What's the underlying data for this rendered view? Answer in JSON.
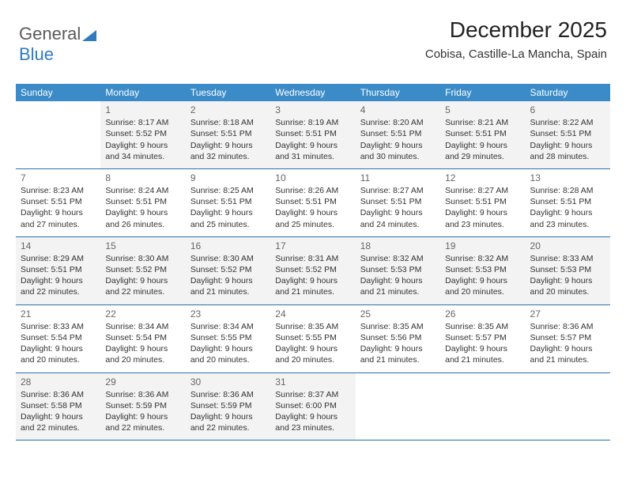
{
  "logo": {
    "text1": "General",
    "text2": "Blue"
  },
  "header": {
    "title": "December 2025",
    "location": "Cobisa, Castille-La Mancha, Spain"
  },
  "colors": {
    "header_bg": "#3b8bc8",
    "header_text": "#ffffff",
    "row_alt": "#f3f3f3",
    "row_border": "#2f6fa8",
    "logo_gray": "#5a5a5a",
    "logo_blue": "#2f7bbf"
  },
  "calendar": {
    "weekdays": [
      "Sunday",
      "Monday",
      "Tuesday",
      "Wednesday",
      "Thursday",
      "Friday",
      "Saturday"
    ],
    "first_day_index": 1,
    "days": [
      {
        "n": 1,
        "sr": "8:17 AM",
        "ss": "5:52 PM",
        "dl": "9 hours and 34 minutes."
      },
      {
        "n": 2,
        "sr": "8:18 AM",
        "ss": "5:51 PM",
        "dl": "9 hours and 32 minutes."
      },
      {
        "n": 3,
        "sr": "8:19 AM",
        "ss": "5:51 PM",
        "dl": "9 hours and 31 minutes."
      },
      {
        "n": 4,
        "sr": "8:20 AM",
        "ss": "5:51 PM",
        "dl": "9 hours and 30 minutes."
      },
      {
        "n": 5,
        "sr": "8:21 AM",
        "ss": "5:51 PM",
        "dl": "9 hours and 29 minutes."
      },
      {
        "n": 6,
        "sr": "8:22 AM",
        "ss": "5:51 PM",
        "dl": "9 hours and 28 minutes."
      },
      {
        "n": 7,
        "sr": "8:23 AM",
        "ss": "5:51 PM",
        "dl": "9 hours and 27 minutes."
      },
      {
        "n": 8,
        "sr": "8:24 AM",
        "ss": "5:51 PM",
        "dl": "9 hours and 26 minutes."
      },
      {
        "n": 9,
        "sr": "8:25 AM",
        "ss": "5:51 PM",
        "dl": "9 hours and 25 minutes."
      },
      {
        "n": 10,
        "sr": "8:26 AM",
        "ss": "5:51 PM",
        "dl": "9 hours and 25 minutes."
      },
      {
        "n": 11,
        "sr": "8:27 AM",
        "ss": "5:51 PM",
        "dl": "9 hours and 24 minutes."
      },
      {
        "n": 12,
        "sr": "8:27 AM",
        "ss": "5:51 PM",
        "dl": "9 hours and 23 minutes."
      },
      {
        "n": 13,
        "sr": "8:28 AM",
        "ss": "5:51 PM",
        "dl": "9 hours and 23 minutes."
      },
      {
        "n": 14,
        "sr": "8:29 AM",
        "ss": "5:51 PM",
        "dl": "9 hours and 22 minutes."
      },
      {
        "n": 15,
        "sr": "8:30 AM",
        "ss": "5:52 PM",
        "dl": "9 hours and 22 minutes."
      },
      {
        "n": 16,
        "sr": "8:30 AM",
        "ss": "5:52 PM",
        "dl": "9 hours and 21 minutes."
      },
      {
        "n": 17,
        "sr": "8:31 AM",
        "ss": "5:52 PM",
        "dl": "9 hours and 21 minutes."
      },
      {
        "n": 18,
        "sr": "8:32 AM",
        "ss": "5:53 PM",
        "dl": "9 hours and 21 minutes."
      },
      {
        "n": 19,
        "sr": "8:32 AM",
        "ss": "5:53 PM",
        "dl": "9 hours and 20 minutes."
      },
      {
        "n": 20,
        "sr": "8:33 AM",
        "ss": "5:53 PM",
        "dl": "9 hours and 20 minutes."
      },
      {
        "n": 21,
        "sr": "8:33 AM",
        "ss": "5:54 PM",
        "dl": "9 hours and 20 minutes."
      },
      {
        "n": 22,
        "sr": "8:34 AM",
        "ss": "5:54 PM",
        "dl": "9 hours and 20 minutes."
      },
      {
        "n": 23,
        "sr": "8:34 AM",
        "ss": "5:55 PM",
        "dl": "9 hours and 20 minutes."
      },
      {
        "n": 24,
        "sr": "8:35 AM",
        "ss": "5:55 PM",
        "dl": "9 hours and 20 minutes."
      },
      {
        "n": 25,
        "sr": "8:35 AM",
        "ss": "5:56 PM",
        "dl": "9 hours and 21 minutes."
      },
      {
        "n": 26,
        "sr": "8:35 AM",
        "ss": "5:57 PM",
        "dl": "9 hours and 21 minutes."
      },
      {
        "n": 27,
        "sr": "8:36 AM",
        "ss": "5:57 PM",
        "dl": "9 hours and 21 minutes."
      },
      {
        "n": 28,
        "sr": "8:36 AM",
        "ss": "5:58 PM",
        "dl": "9 hours and 22 minutes."
      },
      {
        "n": 29,
        "sr": "8:36 AM",
        "ss": "5:59 PM",
        "dl": "9 hours and 22 minutes."
      },
      {
        "n": 30,
        "sr": "8:36 AM",
        "ss": "5:59 PM",
        "dl": "9 hours and 22 minutes."
      },
      {
        "n": 31,
        "sr": "8:37 AM",
        "ss": "6:00 PM",
        "dl": "9 hours and 23 minutes."
      }
    ],
    "labels": {
      "sunrise": "Sunrise:",
      "sunset": "Sunset:",
      "daylight": "Daylight:"
    }
  }
}
